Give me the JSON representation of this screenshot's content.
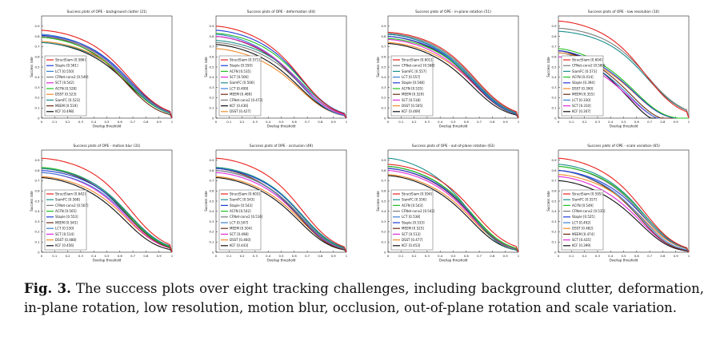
{
  "caption": {
    "label": "Fig. 3.",
    "text": "The success plots over eight tracking challenges, including background clutter, deformation, in-plane rotation, low resolution, motion blur, occlusion, out-of-plane rotation and scale variation."
  },
  "colors": {
    "StructSiam": "#e8201c",
    "Staple": "#1f3bd6",
    "LCT": "#3a7fd1",
    "CFNet-conv2": "#7a7a7a",
    "SCT": "#e02ad9",
    "ACFN": "#22c022",
    "DSST": "#f08a2b",
    "SiamFC": "#1e8f8f",
    "MEEM": "#6a2c16",
    "KCF": "#101010"
  },
  "chart_data": [
    {
      "type": "line",
      "title": "Success plots of OPE - background clutter (21)",
      "xlabel": "Overlap threshold",
      "ylabel": "Success rate",
      "xlim": [
        0,
        1
      ],
      "ylim": [
        0,
        1
      ],
      "xticks": [
        "0",
        "0.1",
        "0.2",
        "0.3",
        "0.4",
        "0.5",
        "0.6",
        "0.7",
        "0.8",
        "0.9",
        "1"
      ],
      "yticks": [
        "0",
        "0.1",
        "0.2",
        "0.3",
        "0.4",
        "0.5",
        "0.6",
        "0.7",
        "0.8",
        "0.9"
      ],
      "legend_position": "lower-left",
      "series": [
        {
          "name": "StructSiam",
          "auc": "0.586",
          "legend": "StructSiam [0.586]",
          "start": 0.86,
          "mid": 0.74
        },
        {
          "name": "Staple",
          "auc": "0.561",
          "legend": "Staple [0.561]",
          "start": 0.81,
          "mid": 0.7
        },
        {
          "name": "LCT",
          "auc": "0.550",
          "legend": "LCT [0.550]",
          "start": 0.82,
          "mid": 0.68
        },
        {
          "name": "CFNet-conv2",
          "auc": "0.549",
          "legend": "CFNet-conv2 [0.549]",
          "start": 0.8,
          "mid": 0.68
        },
        {
          "name": "SCT",
          "auc": "0.542",
          "legend": "SCT [0.542]",
          "start": 0.8,
          "mid": 0.67
        },
        {
          "name": "ACFN",
          "auc": "0.528",
          "legend": "ACFN [0.528]",
          "start": 0.79,
          "mid": 0.65
        },
        {
          "name": "DSST",
          "auc": "0.523",
          "legend": "DSST [0.523]",
          "start": 0.75,
          "mid": 0.65
        },
        {
          "name": "SiamFC",
          "auc": "0.523",
          "legend": "SiamFC [0.523]",
          "start": 0.74,
          "mid": 0.65
        },
        {
          "name": "MEEM",
          "auc": "0.519",
          "legend": "MEEM [0.519]",
          "start": 0.8,
          "mid": 0.63
        },
        {
          "name": "KCF",
          "auc": "0.498",
          "legend": "KCF [0.498]",
          "start": 0.74,
          "mid": 0.62
        }
      ]
    },
    {
      "type": "line",
      "title": "Success plots of OPE - deformation (44)",
      "xlabel": "Overlap threshold",
      "ylabel": "Success rate",
      "xlim": [
        0,
        1
      ],
      "ylim": [
        0,
        1
      ],
      "xticks": [
        "0",
        "0.1",
        "0.2",
        "0.3",
        "0.4",
        "0.5",
        "0.6",
        "0.7",
        "0.8",
        "0.9",
        "1"
      ],
      "yticks": [
        "0",
        "0.1",
        "0.2",
        "0.3",
        "0.4",
        "0.5",
        "0.6",
        "0.7",
        "0.8",
        "0.9"
      ],
      "legend_position": "lower-left",
      "series": [
        {
          "name": "StructSiam",
          "auc": "0.571",
          "legend": "StructSiam [0.571]",
          "start": 0.9,
          "mid": 0.72
        },
        {
          "name": "Staple",
          "auc": "0.550",
          "legend": "Staple [0.550]",
          "start": 0.86,
          "mid": 0.7
        },
        {
          "name": "ACFN",
          "auc": "0.535",
          "legend": "ACFN [0.535]",
          "start": 0.83,
          "mid": 0.68
        },
        {
          "name": "SCT",
          "auc": "0.506",
          "legend": "SCT [0.506]",
          "start": 0.8,
          "mid": 0.63
        },
        {
          "name": "SiamFC",
          "auc": "0.506",
          "legend": "SiamFC [0.506]",
          "start": 0.76,
          "mid": 0.63
        },
        {
          "name": "LCT",
          "auc": "0.499",
          "legend": "LCT [0.499]",
          "start": 0.82,
          "mid": 0.62
        },
        {
          "name": "MEEM",
          "auc": "0.489",
          "legend": "MEEM [0.489]",
          "start": 0.8,
          "mid": 0.61
        },
        {
          "name": "CFNet-conv2",
          "auc": "0.473",
          "legend": "CFNet-conv2 [0.473]",
          "start": 0.74,
          "mid": 0.6
        },
        {
          "name": "KCF",
          "auc": "0.436",
          "legend": "KCF [0.436]",
          "start": 0.72,
          "mid": 0.55
        },
        {
          "name": "DSST",
          "auc": "0.427",
          "legend": "DSST [0.427]",
          "start": 0.68,
          "mid": 0.52
        }
      ]
    },
    {
      "type": "line",
      "title": "Success plots of OPE - in-plane rotation (51)",
      "xlabel": "Overlap threshold",
      "ylabel": "Success rate",
      "xlim": [
        0,
        1
      ],
      "ylim": [
        0,
        1
      ],
      "xticks": [
        "0",
        "0.1",
        "0.2",
        "0.3",
        "0.4",
        "0.5",
        "0.6",
        "0.7",
        "0.8",
        "0.9",
        "1"
      ],
      "yticks": [
        "0",
        "0.1",
        "0.2",
        "0.3",
        "0.4",
        "0.5",
        "0.6",
        "0.7",
        "0.8",
        "0.9"
      ],
      "legend_position": "lower-left",
      "series": [
        {
          "name": "StructSiam",
          "auc": "0.601",
          "legend": "StructSiam [0.601]",
          "start": 0.84,
          "mid": 0.72
        },
        {
          "name": "CFNet-conv2",
          "auc": "0.568",
          "legend": "CFNet-conv2 [0.568]",
          "start": 0.83,
          "mid": 0.7
        },
        {
          "name": "SiamFC",
          "auc": "0.557",
          "legend": "SiamFC [0.557]",
          "start": 0.82,
          "mid": 0.68
        },
        {
          "name": "LCT",
          "auc": "0.557",
          "legend": "LCT [0.557]",
          "start": 0.82,
          "mid": 0.66
        },
        {
          "name": "Staple",
          "auc": "0.548",
          "legend": "Staple [0.548]",
          "start": 0.8,
          "mid": 0.66
        },
        {
          "name": "ACFN",
          "auc": "0.535",
          "legend": "ACFN [0.535]",
          "start": 0.78,
          "mid": 0.65
        },
        {
          "name": "MEEM",
          "auc": "0.529",
          "legend": "MEEM [0.529]",
          "start": 0.8,
          "mid": 0.64
        },
        {
          "name": "SCT",
          "auc": "0.518",
          "legend": "SCT [0.518]",
          "start": 0.77,
          "mid": 0.62
        },
        {
          "name": "DSST",
          "auc": "0.505",
          "legend": "DSST [0.505]",
          "start": 0.74,
          "mid": 0.61
        },
        {
          "name": "KCF",
          "auc": "0.469",
          "legend": "KCF [0.469]",
          "start": 0.73,
          "mid": 0.57
        }
      ]
    },
    {
      "type": "line",
      "title": "Success plots of OPE - low resolution (10)",
      "xlabel": "Overlap threshold",
      "ylabel": "Success rate",
      "xlim": [
        0,
        1
      ],
      "ylim": [
        0,
        1
      ],
      "xticks": [
        "0",
        "0.1",
        "0.2",
        "0.3",
        "0.4",
        "0.5",
        "0.6",
        "0.7",
        "0.8",
        "0.9",
        "1"
      ],
      "yticks": [
        "0",
        "0.1",
        "0.2",
        "0.3",
        "0.4",
        "0.5",
        "0.6",
        "0.7",
        "0.8",
        "0.9"
      ],
      "legend_position": "lower-left",
      "series": [
        {
          "name": "StructSiam",
          "auc": "0.604",
          "legend": "StructSiam [0.604]",
          "start": 0.95,
          "mid": 0.8
        },
        {
          "name": "CFNet-conv2",
          "auc": "0.580",
          "legend": "CFNet-conv2 [0.580]",
          "start": 0.88,
          "mid": 0.78
        },
        {
          "name": "SiamFC",
          "auc": "0.573",
          "legend": "SiamFC [0.573]",
          "start": 0.85,
          "mid": 0.75
        },
        {
          "name": "ACFN",
          "auc": "0.414",
          "legend": "ACFN [0.414]",
          "start": 0.68,
          "mid": 0.42
        },
        {
          "name": "Staple",
          "auc": "0.394",
          "legend": "Staple [0.394]",
          "start": 0.66,
          "mid": 0.4
        },
        {
          "name": "DSST",
          "auc": "0.390",
          "legend": "DSST [0.390]",
          "start": 0.64,
          "mid": 0.39
        },
        {
          "name": "MEEM",
          "auc": "0.355",
          "legend": "MEEM [0.355]",
          "start": 0.66,
          "mid": 0.34
        },
        {
          "name": "LCT",
          "auc": "0.330",
          "legend": "LCT [0.330]",
          "start": 0.64,
          "mid": 0.31
        },
        {
          "name": "SCT",
          "auc": "0.310",
          "legend": "SCT [0.310]",
          "start": 0.6,
          "mid": 0.29
        },
        {
          "name": "KCF",
          "auc": "0.307",
          "legend": "KCF [0.307]",
          "start": 0.66,
          "mid": 0.28
        }
      ]
    },
    {
      "type": "line",
      "title": "Success plots of OPE - motion blur (31)",
      "xlabel": "Overlap threshold",
      "ylabel": "Success rate",
      "xlim": [
        0,
        1
      ],
      "ylim": [
        0,
        1
      ],
      "xticks": [
        "0",
        "0.1",
        "0.2",
        "0.3",
        "0.4",
        "0.5",
        "0.6",
        "0.7",
        "0.8",
        "0.9",
        "1"
      ],
      "yticks": [
        "0",
        "0.1",
        "0.2",
        "0.3",
        "0.4",
        "0.5",
        "0.6",
        "0.7",
        "0.8",
        "0.9"
      ],
      "legend_position": "lower-left",
      "series": [
        {
          "name": "StructSiam",
          "auc": "0.642",
          "legend": "StructSiam [0.642]",
          "start": 0.92,
          "mid": 0.8
        },
        {
          "name": "SiamFC",
          "auc": "0.568",
          "legend": "SiamFC [0.568]",
          "start": 0.82,
          "mid": 0.7
        },
        {
          "name": "CFNet-conv2",
          "auc": "0.567",
          "legend": "CFNet-conv2 [0.567]",
          "start": 0.82,
          "mid": 0.7
        },
        {
          "name": "ACFN",
          "auc": "0.565",
          "legend": "ACFN [0.565]",
          "start": 0.83,
          "mid": 0.69
        },
        {
          "name": "Staple",
          "auc": "0.553",
          "legend": "Staple [0.553]",
          "start": 0.8,
          "mid": 0.68
        },
        {
          "name": "MEEM",
          "auc": "0.545",
          "legend": "MEEM [0.545]",
          "start": 0.82,
          "mid": 0.67
        },
        {
          "name": "LCT",
          "auc": "0.530",
          "legend": "LCT [0.530]",
          "start": 0.78,
          "mid": 0.65
        },
        {
          "name": "SCT",
          "auc": "0.514",
          "legend": "SCT [0.514]",
          "start": 0.78,
          "mid": 0.63
        },
        {
          "name": "DSST",
          "auc": "0.488",
          "legend": "DSST [0.488]",
          "start": 0.74,
          "mid": 0.6
        },
        {
          "name": "KCF",
          "auc": "0.456",
          "legend": "KCF [0.456]",
          "start": 0.73,
          "mid": 0.56
        }
      ]
    },
    {
      "type": "line",
      "title": "Success plots of OPE - occlusion (49)",
      "xlabel": "Overlap threshold",
      "ylabel": "Success rate",
      "xlim": [
        0,
        1
      ],
      "ylim": [
        0,
        1
      ],
      "xticks": [
        "0",
        "0.1",
        "0.2",
        "0.3",
        "0.4",
        "0.5",
        "0.6",
        "0.7",
        "0.8",
        "0.9",
        "1"
      ],
      "yticks": [
        "0",
        "0.1",
        "0.2",
        "0.3",
        "0.4",
        "0.5",
        "0.6",
        "0.7",
        "0.8",
        "0.9"
      ],
      "legend_position": "lower-left",
      "series": [
        {
          "name": "StructSiam",
          "auc": "0.603",
          "legend": "StructSiam [0.603]",
          "start": 0.92,
          "mid": 0.76
        },
        {
          "name": "SiamFC",
          "auc": "0.543",
          "legend": "SiamFC [0.543]",
          "start": 0.83,
          "mid": 0.68
        },
        {
          "name": "Staple",
          "auc": "0.543",
          "legend": "Staple [0.543]",
          "start": 0.82,
          "mid": 0.67
        },
        {
          "name": "ACFN",
          "auc": "0.542",
          "legend": "ACFN [0.542]",
          "start": 0.83,
          "mid": 0.67
        },
        {
          "name": "CFNet-conv2",
          "auc": "0.516",
          "legend": "CFNet-conv2 [0.516]",
          "start": 0.8,
          "mid": 0.64
        },
        {
          "name": "LCT",
          "auc": "0.507",
          "legend": "LCT [0.507]",
          "start": 0.8,
          "mid": 0.63
        },
        {
          "name": "MEEM",
          "auc": "0.504",
          "legend": "MEEM [0.504]",
          "start": 0.82,
          "mid": 0.62
        },
        {
          "name": "SCT",
          "auc": "0.498",
          "legend": "SCT [0.498]",
          "start": 0.78,
          "mid": 0.61
        },
        {
          "name": "DSST",
          "auc": "0.460",
          "legend": "DSST [0.460]",
          "start": 0.74,
          "mid": 0.58
        },
        {
          "name": "KCF",
          "auc": "0.443",
          "legend": "KCF [0.443]",
          "start": 0.73,
          "mid": 0.55
        }
      ]
    },
    {
      "type": "line",
      "title": "Success plots of OPE - out-of-plane rotation (63)",
      "xlabel": "Overlap threshold",
      "ylabel": "Success rate",
      "xlim": [
        0,
        1
      ],
      "ylim": [
        0,
        1
      ],
      "xticks": [
        "0",
        "0.1",
        "0.2",
        "0.3",
        "0.4",
        "0.5",
        "0.6",
        "0.7",
        "0.8",
        "0.9",
        "1"
      ],
      "yticks": [
        "0",
        "0.1",
        "0.2",
        "0.3",
        "0.4",
        "0.5",
        "0.6",
        "0.7",
        "0.8",
        "0.9"
      ],
      "legend_position": "lower-left",
      "series": [
        {
          "name": "StructSiam",
          "auc": "0.594",
          "legend": "StructSiam [0.594]",
          "start": 0.86,
          "mid": 0.72
        },
        {
          "name": "SiamFC",
          "auc": "0.556",
          "legend": "SiamFC [0.556]",
          "start": 0.92,
          "mid": 0.68
        },
        {
          "name": "ACFN",
          "auc": "0.543",
          "legend": "ACFN [0.543]",
          "start": 0.84,
          "mid": 0.67
        },
        {
          "name": "CFNet-conv2",
          "auc": "0.542",
          "legend": "CFNet-conv2 [0.542]",
          "start": 0.84,
          "mid": 0.66
        },
        {
          "name": "LCT",
          "auc": "0.538",
          "legend": "LCT [0.538]",
          "start": 0.84,
          "mid": 0.66
        },
        {
          "name": "Staple",
          "auc": "0.533",
          "legend": "Staple [0.533]",
          "start": 0.82,
          "mid": 0.65
        },
        {
          "name": "MEEM",
          "auc": "0.525",
          "legend": "MEEM [0.525]",
          "start": 0.82,
          "mid": 0.64
        },
        {
          "name": "SCT",
          "auc": "0.513",
          "legend": "SCT [0.513]",
          "start": 0.8,
          "mid": 0.62
        },
        {
          "name": "DSST",
          "auc": "0.477",
          "legend": "DSST [0.477]",
          "start": 0.76,
          "mid": 0.59
        },
        {
          "name": "KCF",
          "auc": "0.453",
          "legend": "KCF [0.453]",
          "start": 0.75,
          "mid": 0.56
        }
      ]
    },
    {
      "type": "line",
      "title": "Success plots of OPE - scale variation (65)",
      "xlabel": "Overlap threshold",
      "ylabel": "Success rate",
      "xlim": [
        0,
        1
      ],
      "ylim": [
        0,
        1
      ],
      "xticks": [
        "0",
        "0.1",
        "0.2",
        "0.3",
        "0.4",
        "0.5",
        "0.6",
        "0.7",
        "0.8",
        "0.9",
        "1"
      ],
      "yticks": [
        "0",
        "0.1",
        "0.2",
        "0.3",
        "0.4",
        "0.5",
        "0.6",
        "0.7",
        "0.8",
        "0.9"
      ],
      "legend_position": "lower-left",
      "series": [
        {
          "name": "StructSiam",
          "auc": "0.595",
          "legend": "StructSiam [0.595]",
          "start": 0.92,
          "mid": 0.74
        },
        {
          "name": "SiamFC",
          "auc": "0.557",
          "legend": "SiamFC [0.557]",
          "start": 0.86,
          "mid": 0.69
        },
        {
          "name": "ACFN",
          "auc": "0.549",
          "legend": "ACFN [0.549]",
          "start": 0.84,
          "mid": 0.68
        },
        {
          "name": "CFNet-conv2",
          "auc": "0.535",
          "legend": "CFNet-conv2 [0.535]",
          "start": 0.84,
          "mid": 0.66
        },
        {
          "name": "Staple",
          "auc": "0.525",
          "legend": "Staple [0.525]",
          "start": 0.8,
          "mid": 0.64
        },
        {
          "name": "LCT",
          "auc": "0.492",
          "legend": "LCT [0.492]",
          "start": 0.8,
          "mid": 0.6
        },
        {
          "name": "DSST",
          "auc": "0.482",
          "legend": "DSST [0.482]",
          "start": 0.76,
          "mid": 0.6
        },
        {
          "name": "MEEM",
          "auc": "0.474",
          "legend": "MEEM [0.474]",
          "start": 0.8,
          "mid": 0.58
        },
        {
          "name": "SCT",
          "auc": "0.435",
          "legend": "SCT [0.435]",
          "start": 0.74,
          "mid": 0.54
        },
        {
          "name": "KCF",
          "auc": "0.399",
          "legend": "KCF [0.399]",
          "start": 0.7,
          "mid": 0.5
        }
      ]
    }
  ]
}
